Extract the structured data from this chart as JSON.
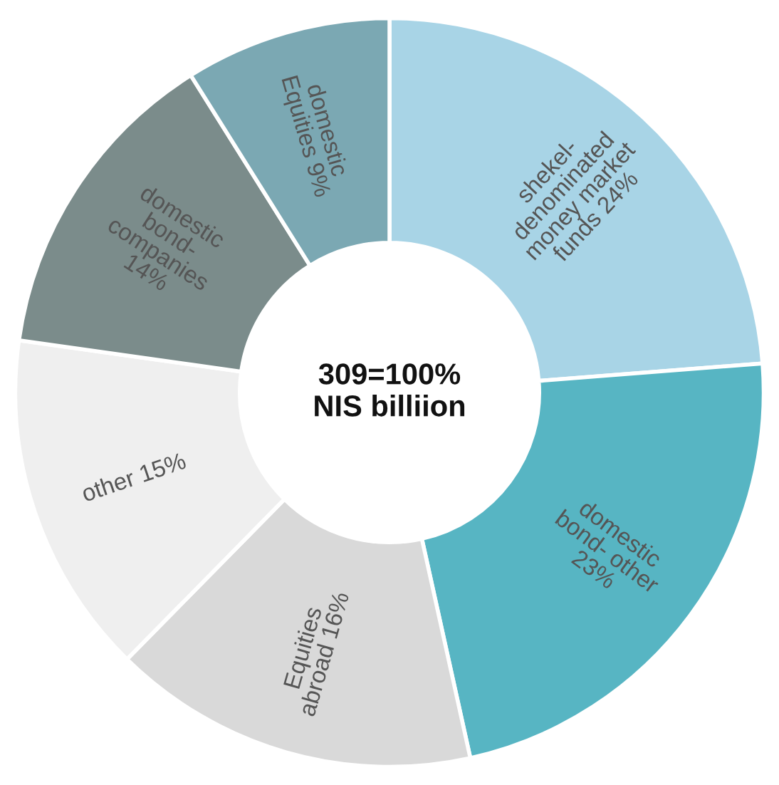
{
  "chart_data": {
    "type": "donut",
    "categories": [
      "shekel-\ndenominated\nmoney market\nfunds 24%",
      "domestic\nbond- other\n23%",
      "Equities\nabroad 16%",
      "other 15%",
      "domestic\nbond-\ncompanies\n14%",
      "domestic\nEquities 9%"
    ],
    "values": [
      24,
      23,
      16,
      15,
      14,
      9
    ],
    "colors": [
      "#a8d4e6",
      "#57b5c3",
      "#d9d9d9",
      "#efefef",
      "#7b8c8b",
      "#7ba8b3"
    ],
    "annotations": [
      "309=100%\nNIS billiion"
    ]
  }
}
